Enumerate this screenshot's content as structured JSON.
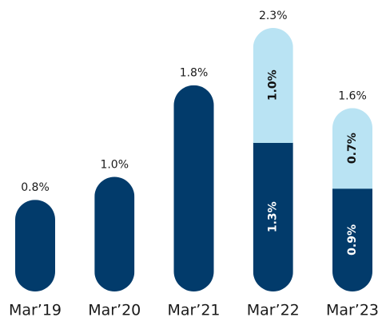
{
  "chart_data": {
    "type": "stacked_bar",
    "categories": [
      "Mar’19",
      "Mar’20",
      "Mar’21",
      "Mar’22",
      "Mar’23"
    ],
    "series": [
      {
        "color": "#023b6b",
        "values": [
          0.8,
          1.0,
          1.8,
          1.3,
          0.9
        ],
        "value_labels": [
          null,
          null,
          null,
          "1.3%",
          "0.9%"
        ]
      },
      {
        "color": "#b9e3f3",
        "values": [
          null,
          null,
          null,
          1.0,
          0.7
        ],
        "value_labels": [
          null,
          null,
          null,
          "1.0%",
          "0.7%"
        ]
      }
    ],
    "totals": [
      0.8,
      1.0,
      1.8,
      2.3,
      1.6
    ],
    "total_labels": [
      "0.8%",
      "1.0%",
      "1.8%",
      "2.3%",
      "1.6%"
    ]
  }
}
